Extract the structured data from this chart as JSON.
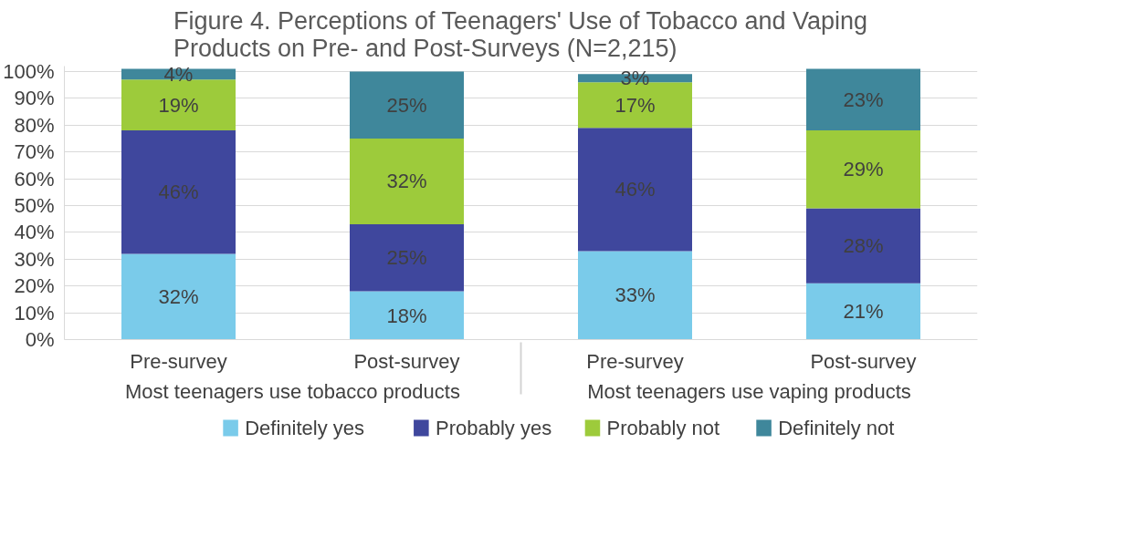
{
  "chart_data": {
    "type": "bar",
    "stacked": true,
    "title": "Figure 4. Perceptions of Teenagers' Use of Tobacco and Vaping\nProducts on Pre- and Post-Surveys (N=2,215)",
    "categories": [
      "Pre-survey",
      "Post-survey",
      "Pre-survey",
      "Post-survey"
    ],
    "annotations": [
      "Most teenagers use tobacco products",
      "Most teenagers use vaping products"
    ],
    "series": [
      {
        "name": "Definitely yes",
        "color": "#7acbea",
        "values": [
          32,
          18,
          33,
          21
        ],
        "value_labels": [
          "32%",
          "18%",
          "33%",
          "21%"
        ]
      },
      {
        "name": "Probably yes",
        "color": "#3f479d",
        "values": [
          46,
          25,
          46,
          28
        ],
        "value_labels": [
          "46%",
          "25%",
          "46%",
          "28%"
        ]
      },
      {
        "name": "Probably not",
        "color": "#9dcb3b",
        "values": [
          19,
          32,
          17,
          29
        ],
        "value_labels": [
          "19%",
          "32%",
          "17%",
          "29%"
        ]
      },
      {
        "name": "Definitely not",
        "color": "#3f879b",
        "values": [
          4,
          25,
          3,
          23
        ],
        "value_labels": [
          "4%",
          "25%",
          "3%",
          "23%"
        ]
      }
    ],
    "ylim": [
      0,
      102
    ],
    "yticks": [
      {
        "value": 0,
        "label": "0%"
      },
      {
        "value": 10,
        "label": "10%"
      },
      {
        "value": 20,
        "label": "20%"
      },
      {
        "value": 30,
        "label": "30%"
      },
      {
        "value": 40,
        "label": "40%"
      },
      {
        "value": 50,
        "label": "50%"
      },
      {
        "value": 60,
        "label": "60%"
      },
      {
        "value": 70,
        "label": "70%"
      },
      {
        "value": 80,
        "label": "80%"
      },
      {
        "value": 90,
        "label": "90%"
      },
      {
        "value": 100,
        "label": "100%"
      }
    ],
    "grid": "y",
    "legend": "bottom",
    "data_labels": true
  }
}
